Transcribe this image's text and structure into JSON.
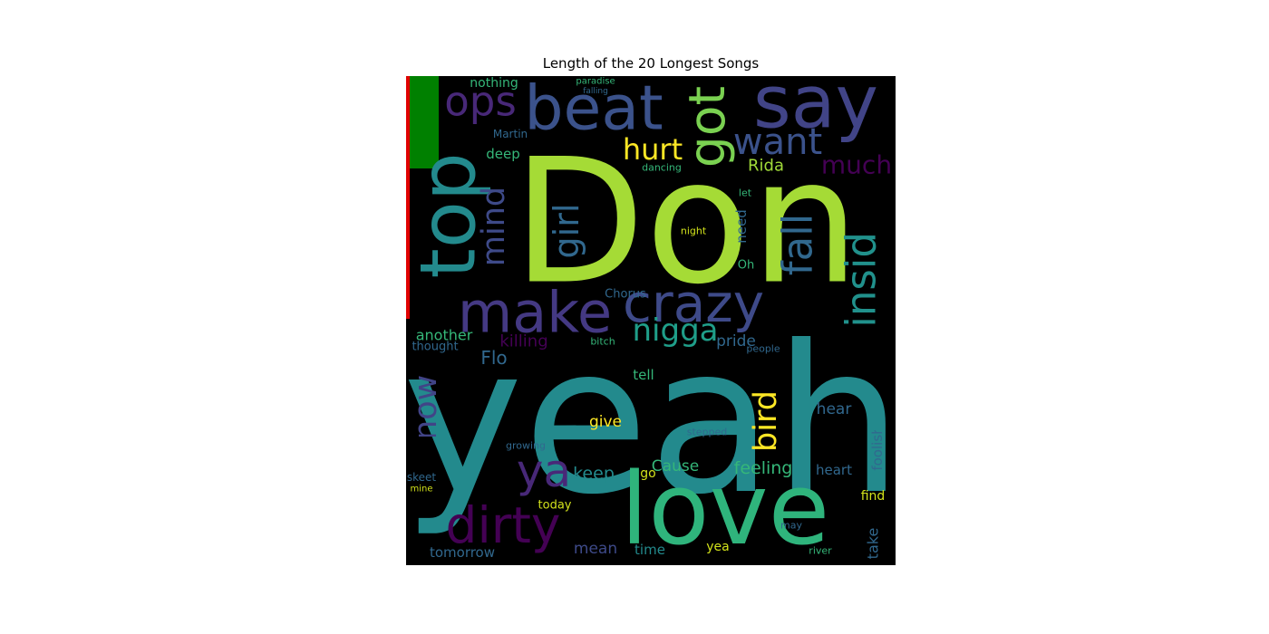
{
  "chart_data": {
    "type": "wordcloud",
    "title": "Length of the 20 Longest Songs",
    "background": "#000000",
    "words": [
      {
        "text": "Don",
        "color": "#a5db36"
      },
      {
        "text": "yeah",
        "color": "#238a8d"
      },
      {
        "text": "love",
        "color": "#2fb47c"
      },
      {
        "text": "say",
        "color": "#414487"
      },
      {
        "text": "beat",
        "color": "#3b528b"
      },
      {
        "text": "stop",
        "color": "#238a8d"
      },
      {
        "text": "ops",
        "color": "#482878"
      },
      {
        "text": "got",
        "color": "#7ad151"
      },
      {
        "text": "want",
        "color": "#3b528b"
      },
      {
        "text": "hurt",
        "color": "#fde725"
      },
      {
        "text": "much",
        "color": "#440154"
      },
      {
        "text": "Rida",
        "color": "#a0da39"
      },
      {
        "text": "make",
        "color": "#443983"
      },
      {
        "text": "crazy",
        "color": "#3e4a89"
      },
      {
        "text": "mind",
        "color": "#3e4a89"
      },
      {
        "text": "girl",
        "color": "#31688e"
      },
      {
        "text": "inside",
        "color": "#21918c"
      },
      {
        "text": "fall",
        "color": "#31688e"
      },
      {
        "text": "nigga",
        "color": "#1f9e89"
      },
      {
        "text": "another",
        "color": "#35b779"
      },
      {
        "text": "killing",
        "color": "#440154"
      },
      {
        "text": "thought",
        "color": "#31688e"
      },
      {
        "text": "Flo",
        "color": "#31688e"
      },
      {
        "text": "pride",
        "color": "#31688e"
      },
      {
        "text": "people",
        "color": "#31688e"
      },
      {
        "text": "know",
        "color": "#414487"
      },
      {
        "text": "bird",
        "color": "#fde725"
      },
      {
        "text": "ya",
        "color": "#482878"
      },
      {
        "text": "dirty",
        "color": "#440154"
      },
      {
        "text": "keep",
        "color": "#238a8d"
      },
      {
        "text": "Cause",
        "color": "#35b779"
      },
      {
        "text": "feeling",
        "color": "#35b779"
      },
      {
        "text": "heart",
        "color": "#31688e"
      },
      {
        "text": "foolish",
        "color": "#31688e"
      },
      {
        "text": "hear",
        "color": "#31688e"
      },
      {
        "text": "give",
        "color": "#fde725"
      },
      {
        "text": "tomorrow",
        "color": "#31688e"
      },
      {
        "text": "mean",
        "color": "#3e4a89"
      },
      {
        "text": "time",
        "color": "#238a8d"
      },
      {
        "text": "yea",
        "color": "#d2e21b"
      },
      {
        "text": "today",
        "color": "#d2e21b"
      },
      {
        "text": "take",
        "color": "#31688e"
      },
      {
        "text": "find",
        "color": "#d2e21b"
      },
      {
        "text": "may",
        "color": "#31688e"
      },
      {
        "text": "river",
        "color": "#35b779"
      },
      {
        "text": "nothing",
        "color": "#35b779"
      },
      {
        "text": "deep",
        "color": "#35b779"
      },
      {
        "text": "Martin",
        "color": "#31688e"
      },
      {
        "text": "dancing",
        "color": "#35b779"
      },
      {
        "text": "tell",
        "color": "#35b779"
      },
      {
        "text": "Chorus",
        "color": "#31688e"
      },
      {
        "text": "need",
        "color": "#31688e"
      },
      {
        "text": "Oh",
        "color": "#35b779"
      },
      {
        "text": "night",
        "color": "#d2e21b"
      },
      {
        "text": "let",
        "color": "#35b779"
      },
      {
        "text": "paradise",
        "color": "#35b779"
      },
      {
        "text": "falling",
        "color": "#31688e"
      },
      {
        "text": "growing",
        "color": "#31688e"
      },
      {
        "text": "mine",
        "color": "#d2e21b"
      },
      {
        "text": "skeet",
        "color": "#31688e"
      },
      {
        "text": "bitch",
        "color": "#35b779"
      },
      {
        "text": "stepped",
        "color": "#31688e"
      },
      {
        "text": "go",
        "color": "#d2e21b"
      }
    ]
  }
}
